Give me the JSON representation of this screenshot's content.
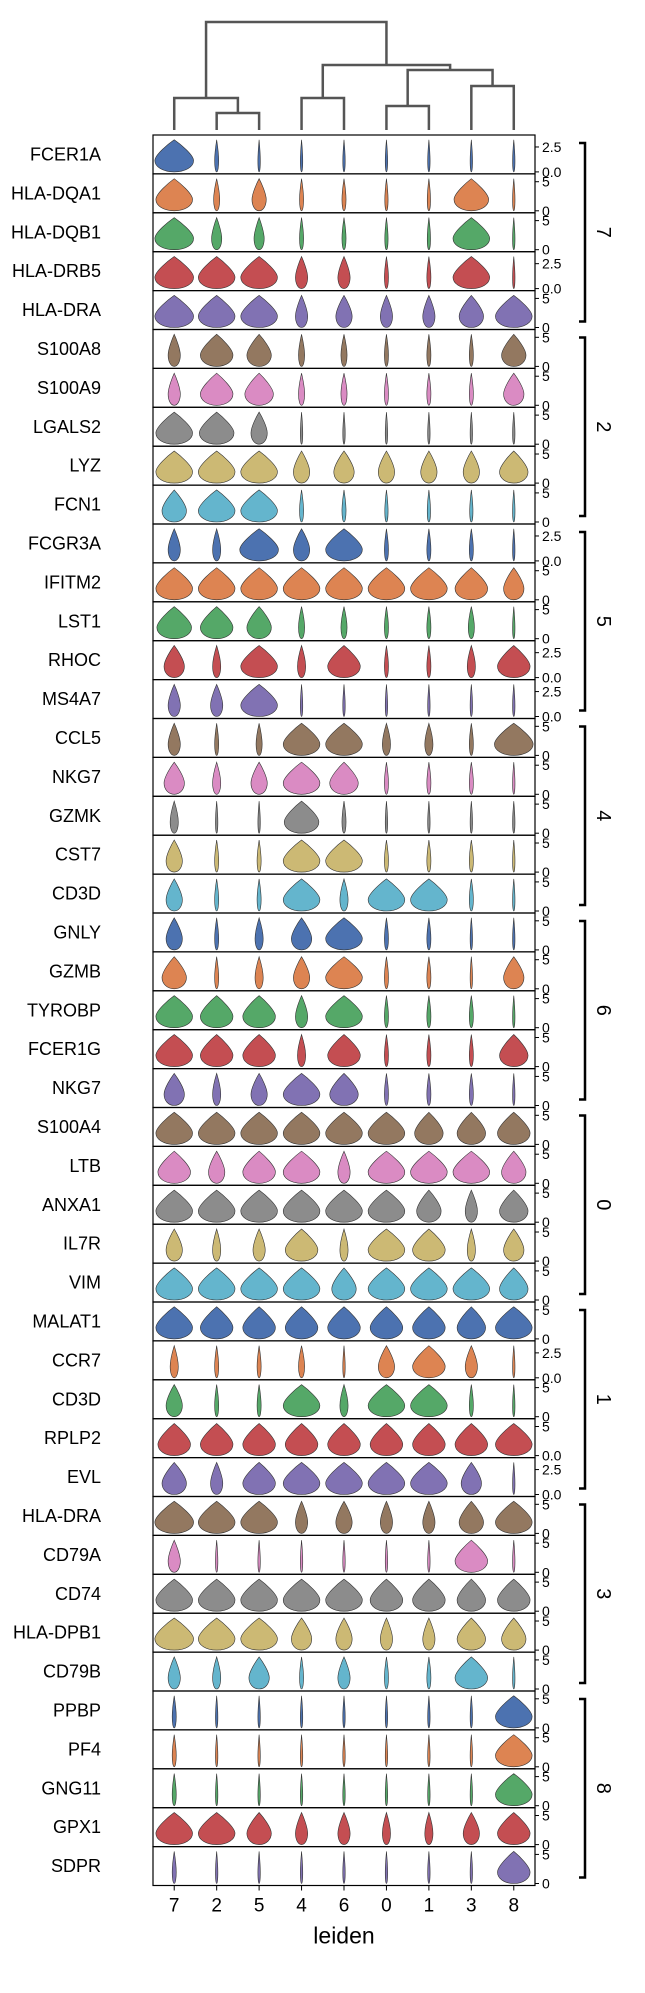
{
  "chart_data": {
    "type": "stacked violin",
    "xlabel": "leiden",
    "categories": [
      "7",
      "2",
      "5",
      "4",
      "6",
      "0",
      "1",
      "3",
      "8"
    ],
    "colors": [
      "#4c72b0",
      "#dd8452",
      "#55a868",
      "#c44e52",
      "#8172b3",
      "#937860",
      "#da8bc3",
      "#8c8c8c",
      "#ccb974",
      "#64b5cd"
    ],
    "dendrogram": {
      "merges": [
        [
          "7",
          "2"
        ],
        [
          "2",
          "5"
        ],
        [
          "4",
          "6"
        ],
        [
          "0",
          "1"
        ],
        [
          "3",
          "8"
        ]
      ]
    },
    "genes": [
      {
        "name": "FCER1A",
        "ticks": [
          [
            "2.5",
            2.5
          ],
          [
            "0.0",
            0.0
          ]
        ],
        "ymax": 3.5,
        "widths": [
          0.95,
          0.1,
          0.06,
          0.05,
          0.05,
          0.05,
          0.05,
          0.05,
          0.04
        ]
      },
      {
        "name": "HLA-DQA1",
        "ticks": [
          [
            "5",
            5
          ],
          [
            "0",
            0
          ]
        ],
        "ymax": 6,
        "widths": [
          0.9,
          0.15,
          0.35,
          0.1,
          0.1,
          0.08,
          0.08,
          0.85,
          0.06
        ]
      },
      {
        "name": "HLA-DQB1",
        "ticks": [
          [
            "5",
            5
          ],
          [
            "0",
            0
          ]
        ],
        "ymax": 6,
        "widths": [
          0.95,
          0.25,
          0.25,
          0.1,
          0.1,
          0.08,
          0.08,
          0.9,
          0.06
        ]
      },
      {
        "name": "HLA-DRB5",
        "ticks": [
          [
            "2.5",
            2.5
          ],
          [
            "0.0",
            0.0
          ]
        ],
        "ymax": 3.5,
        "widths": [
          0.95,
          0.9,
          0.9,
          0.3,
          0.3,
          0.1,
          0.1,
          0.9,
          0.06
        ]
      },
      {
        "name": "HLA-DRA",
        "ticks": [
          [
            "5",
            5
          ],
          [
            "0",
            0
          ]
        ],
        "ymax": 6,
        "widths": [
          0.95,
          0.9,
          0.9,
          0.3,
          0.4,
          0.3,
          0.3,
          0.6,
          0.9
        ]
      },
      {
        "name": "S100A8",
        "ticks": [
          [
            "5",
            5
          ],
          [
            "0",
            0
          ]
        ],
        "ymax": 6,
        "widths": [
          0.3,
          0.8,
          0.6,
          0.15,
          0.15,
          0.1,
          0.1,
          0.1,
          0.6
        ]
      },
      {
        "name": "S100A9",
        "ticks": [
          [
            "5",
            5
          ],
          [
            "0",
            0
          ]
        ],
        "ymax": 6,
        "widths": [
          0.3,
          0.8,
          0.7,
          0.15,
          0.15,
          0.1,
          0.1,
          0.1,
          0.5
        ]
      },
      {
        "name": "LGALS2",
        "ticks": [
          [
            "5",
            5
          ],
          [
            "0",
            0
          ]
        ],
        "ymax": 6,
        "widths": [
          0.9,
          0.85,
          0.4,
          0.05,
          0.05,
          0.05,
          0.05,
          0.05,
          0.05
        ]
      },
      {
        "name": "LYZ",
        "ticks": [
          [
            "5",
            5
          ],
          [
            "0",
            0
          ]
        ],
        "ymax": 6,
        "widths": [
          0.9,
          0.9,
          0.9,
          0.4,
          0.5,
          0.4,
          0.4,
          0.4,
          0.7
        ]
      },
      {
        "name": "FCN1",
        "ticks": [
          [
            "5",
            5
          ],
          [
            "0",
            0
          ]
        ],
        "ymax": 6,
        "widths": [
          0.6,
          0.9,
          0.9,
          0.1,
          0.1,
          0.08,
          0.08,
          0.08,
          0.06
        ]
      },
      {
        "name": "FCGR3A",
        "ticks": [
          [
            "2.5",
            2.5
          ],
          [
            "0.0",
            0.0
          ]
        ],
        "ymax": 3.5,
        "widths": [
          0.3,
          0.2,
          0.95,
          0.4,
          0.9,
          0.1,
          0.1,
          0.1,
          0.05
        ]
      },
      {
        "name": "IFITM2",
        "ticks": [
          [
            "5",
            5
          ],
          [
            "0",
            0
          ]
        ],
        "ymax": 6,
        "widths": [
          0.9,
          0.9,
          0.9,
          0.9,
          0.9,
          0.9,
          0.9,
          0.8,
          0.5
        ]
      },
      {
        "name": "LST1",
        "ticks": [
          [
            "5",
            5
          ],
          [
            "0",
            0
          ]
        ],
        "ymax": 6,
        "widths": [
          0.85,
          0.8,
          0.6,
          0.15,
          0.15,
          0.1,
          0.1,
          0.15,
          0.05
        ]
      },
      {
        "name": "RHOC",
        "ticks": [
          [
            "2.5",
            2.5
          ],
          [
            "0.0",
            0.0
          ]
        ],
        "ymax": 3.5,
        "widths": [
          0.5,
          0.2,
          0.9,
          0.2,
          0.8,
          0.1,
          0.1,
          0.2,
          0.8
        ]
      },
      {
        "name": "MS4A7",
        "ticks": [
          [
            "2.5",
            2.5
          ],
          [
            "0.0",
            0.0
          ]
        ],
        "ymax": 3.5,
        "widths": [
          0.3,
          0.3,
          0.9,
          0.05,
          0.05,
          0.05,
          0.05,
          0.05,
          0.05
        ]
      },
      {
        "name": "CCL5",
        "ticks": [
          [
            "5",
            5
          ],
          [
            "0",
            0
          ]
        ],
        "ymax": 6,
        "widths": [
          0.3,
          0.1,
          0.15,
          0.9,
          0.9,
          0.2,
          0.2,
          0.1,
          0.95
        ]
      },
      {
        "name": "NKG7",
        "ticks": [
          [
            "5",
            5
          ],
          [
            "0",
            0
          ]
        ],
        "ymax": 6,
        "widths": [
          0.5,
          0.2,
          0.4,
          0.9,
          0.7,
          0.1,
          0.1,
          0.1,
          0.05
        ]
      },
      {
        "name": "GZMK",
        "ticks": [
          [
            "5",
            5
          ],
          [
            "0",
            0
          ]
        ],
        "ymax": 6,
        "widths": [
          0.2,
          0.05,
          0.05,
          0.85,
          0.1,
          0.05,
          0.05,
          0.05,
          0.05
        ]
      },
      {
        "name": "CST7",
        "ticks": [
          [
            "5",
            5
          ],
          [
            "0",
            0
          ]
        ],
        "ymax": 6,
        "widths": [
          0.4,
          0.1,
          0.1,
          0.9,
          0.9,
          0.1,
          0.1,
          0.1,
          0.05
        ]
      },
      {
        "name": "CD3D",
        "ticks": [
          [
            "5",
            5
          ],
          [
            "0",
            0
          ]
        ],
        "ymax": 6,
        "widths": [
          0.4,
          0.1,
          0.1,
          0.9,
          0.2,
          0.9,
          0.9,
          0.1,
          0.05
        ]
      },
      {
        "name": "GNLY",
        "ticks": [
          [
            "5",
            5
          ],
          [
            "0",
            0
          ]
        ],
        "ymax": 6,
        "widths": [
          0.4,
          0.1,
          0.2,
          0.5,
          0.9,
          0.1,
          0.1,
          0.05,
          0.05
        ]
      },
      {
        "name": "GZMB",
        "ticks": [
          [
            "5",
            5
          ],
          [
            "0",
            0
          ]
        ],
        "ymax": 6,
        "widths": [
          0.6,
          0.1,
          0.2,
          0.4,
          0.9,
          0.1,
          0.1,
          0.05,
          0.5
        ]
      },
      {
        "name": "TYROBP",
        "ticks": [
          [
            "5",
            5
          ],
          [
            "0",
            0
          ]
        ],
        "ymax": 6,
        "widths": [
          0.9,
          0.8,
          0.8,
          0.3,
          0.9,
          0.1,
          0.1,
          0.1,
          0.05
        ]
      },
      {
        "name": "FCER1G",
        "ticks": [
          [
            "5",
            5
          ],
          [
            "0",
            0
          ]
        ],
        "ymax": 6,
        "widths": [
          0.9,
          0.8,
          0.8,
          0.2,
          0.8,
          0.1,
          0.1,
          0.1,
          0.7
        ]
      },
      {
        "name": "NKG7",
        "ticks": [
          [
            "5",
            5
          ],
          [
            "0",
            0
          ]
        ],
        "ymax": 6,
        "widths": [
          0.5,
          0.2,
          0.4,
          0.9,
          0.7,
          0.1,
          0.1,
          0.1,
          0.05
        ]
      },
      {
        "name": "S100A4",
        "ticks": [
          [
            "5",
            5
          ],
          [
            "0",
            0
          ]
        ],
        "ymax": 6,
        "widths": [
          0.9,
          0.9,
          0.9,
          0.9,
          0.9,
          0.9,
          0.7,
          0.7,
          0.8
        ]
      },
      {
        "name": "LTB",
        "ticks": [
          [
            "5",
            5
          ],
          [
            "0",
            0
          ]
        ],
        "ymax": 6,
        "widths": [
          0.8,
          0.4,
          0.8,
          0.9,
          0.3,
          0.9,
          0.9,
          0.9,
          0.6
        ]
      },
      {
        "name": "ANXA1",
        "ticks": [
          [
            "5",
            5
          ],
          [
            "0",
            0
          ]
        ],
        "ymax": 6,
        "widths": [
          0.9,
          0.9,
          0.9,
          0.9,
          0.9,
          0.9,
          0.6,
          0.3,
          0.7
        ]
      },
      {
        "name": "IL7R",
        "ticks": [
          [
            "5",
            5
          ],
          [
            "0",
            0
          ]
        ],
        "ymax": 6,
        "widths": [
          0.4,
          0.2,
          0.3,
          0.8,
          0.2,
          0.9,
          0.8,
          0.2,
          0.5
        ]
      },
      {
        "name": "VIM",
        "ticks": [
          [
            "5",
            5
          ],
          [
            "0",
            0
          ]
        ],
        "ymax": 6,
        "widths": [
          0.9,
          0.9,
          0.9,
          0.9,
          0.6,
          0.9,
          0.9,
          0.9,
          0.7
        ]
      },
      {
        "name": "MALAT1",
        "ticks": [
          [
            "5",
            5
          ],
          [
            "0",
            0
          ]
        ],
        "ymax": 6,
        "widths": [
          0.9,
          0.8,
          0.8,
          0.8,
          0.8,
          0.8,
          0.8,
          0.7,
          0.9
        ]
      },
      {
        "name": "CCR7",
        "ticks": [
          [
            "2.5",
            2.5
          ],
          [
            "0.0",
            0.0
          ]
        ],
        "ymax": 3.5,
        "widths": [
          0.2,
          0.1,
          0.1,
          0.15,
          0.05,
          0.4,
          0.8,
          0.3,
          0.05
        ]
      },
      {
        "name": "CD3D",
        "ticks": [
          [
            "5",
            5
          ],
          [
            "0",
            0
          ]
        ],
        "ymax": 6,
        "widths": [
          0.4,
          0.1,
          0.1,
          0.9,
          0.2,
          0.9,
          0.9,
          0.1,
          0.05
        ]
      },
      {
        "name": "RPLP2",
        "ticks": [
          [
            "5",
            5
          ],
          [
            "0.0",
            0.0
          ]
        ],
        "ymax": 6,
        "widths": [
          0.8,
          0.8,
          0.8,
          0.8,
          0.8,
          0.8,
          0.8,
          0.8,
          0.9
        ]
      },
      {
        "name": "EVL",
        "ticks": [
          [
            "2.5",
            2.5
          ],
          [
            "0.0",
            0.0
          ]
        ],
        "ymax": 3.5,
        "widths": [
          0.6,
          0.3,
          0.8,
          0.9,
          0.9,
          0.9,
          0.9,
          0.5,
          0.05
        ]
      },
      {
        "name": "HLA-DRA",
        "ticks": [
          [
            "5",
            5
          ],
          [
            "0",
            0
          ]
        ],
        "ymax": 6,
        "widths": [
          0.95,
          0.9,
          0.9,
          0.3,
          0.4,
          0.3,
          0.3,
          0.6,
          0.9
        ]
      },
      {
        "name": "CD79A",
        "ticks": [
          [
            "5",
            5
          ],
          [
            "0",
            0
          ]
        ],
        "ymax": 6,
        "widths": [
          0.3,
          0.05,
          0.05,
          0.05,
          0.05,
          0.05,
          0.05,
          0.8,
          0.05
        ]
      },
      {
        "name": "CD74",
        "ticks": [
          [
            "5",
            5
          ],
          [
            "0",
            0
          ]
        ],
        "ymax": 6,
        "widths": [
          0.9,
          0.9,
          0.9,
          0.9,
          0.9,
          0.8,
          0.8,
          0.7,
          0.8
        ]
      },
      {
        "name": "HLA-DPB1",
        "ticks": [
          [
            "5",
            5
          ],
          [
            "0",
            0
          ]
        ],
        "ymax": 6,
        "widths": [
          0.95,
          0.9,
          0.9,
          0.5,
          0.4,
          0.3,
          0.3,
          0.7,
          0.6
        ]
      },
      {
        "name": "CD79B",
        "ticks": [
          [
            "5",
            5
          ],
          [
            "0",
            0
          ]
        ],
        "ymax": 6,
        "widths": [
          0.3,
          0.2,
          0.5,
          0.1,
          0.3,
          0.1,
          0.1,
          0.8,
          0.05
        ]
      },
      {
        "name": "PPBP",
        "ticks": [
          [
            "5",
            5
          ],
          [
            "0",
            0
          ]
        ],
        "ymax": 6,
        "widths": [
          0.1,
          0.05,
          0.05,
          0.05,
          0.05,
          0.05,
          0.05,
          0.05,
          0.9
        ]
      },
      {
        "name": "PF4",
        "ticks": [
          [
            "5",
            5
          ],
          [
            "0",
            0
          ]
        ],
        "ymax": 6,
        "widths": [
          0.1,
          0.05,
          0.05,
          0.05,
          0.05,
          0.05,
          0.05,
          0.05,
          0.9
        ]
      },
      {
        "name": "GNG11",
        "ticks": [
          [
            "5",
            5
          ],
          [
            "0",
            0
          ]
        ],
        "ymax": 6,
        "widths": [
          0.1,
          0.05,
          0.05,
          0.05,
          0.05,
          0.05,
          0.05,
          0.05,
          0.9
        ]
      },
      {
        "name": "GPX1",
        "ticks": [
          [
            "5",
            5
          ],
          [
            "0",
            0
          ]
        ],
        "ymax": 6,
        "widths": [
          0.9,
          0.9,
          0.6,
          0.3,
          0.3,
          0.2,
          0.2,
          0.4,
          0.8
        ]
      },
      {
        "name": "SDPR",
        "ticks": [
          [
            "5",
            5
          ],
          [
            "0",
            0
          ]
        ],
        "ymax": 6,
        "widths": [
          0.1,
          0.05,
          0.05,
          0.05,
          0.05,
          0.05,
          0.05,
          0.05,
          0.8
        ]
      }
    ],
    "groups": [
      {
        "label": "7",
        "from": 0,
        "to": 4
      },
      {
        "label": "2",
        "from": 5,
        "to": 9
      },
      {
        "label": "5",
        "from": 10,
        "to": 14
      },
      {
        "label": "4",
        "from": 15,
        "to": 19
      },
      {
        "label": "6",
        "from": 20,
        "to": 24
      },
      {
        "label": "0",
        "from": 25,
        "to": 29
      },
      {
        "label": "1",
        "from": 30,
        "to": 34
      },
      {
        "label": "3",
        "from": 35,
        "to": 39
      },
      {
        "label": "8",
        "from": 40,
        "to": 44
      }
    ]
  }
}
